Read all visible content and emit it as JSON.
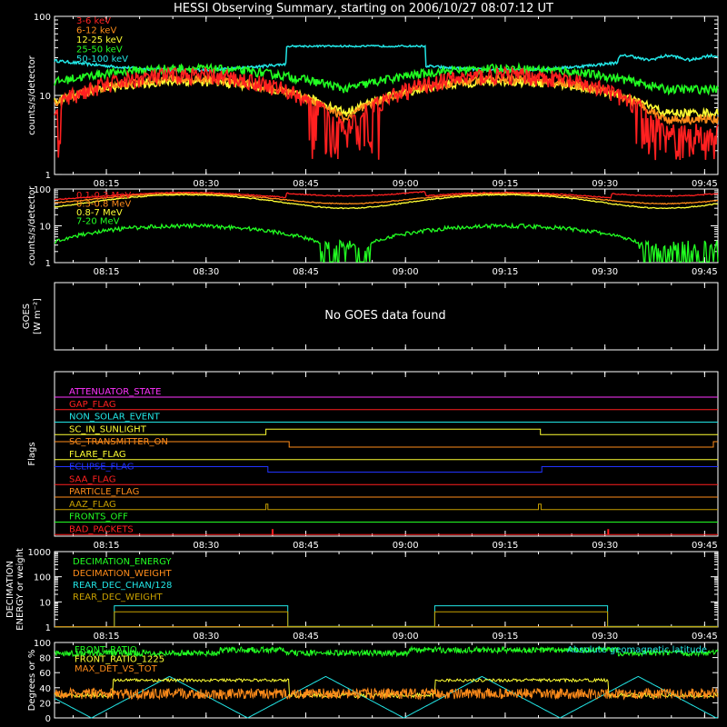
{
  "title": "HESSI Observing Summary, starting on 2006/10/27 08:07:12 UT",
  "time_ticks": [
    "08:15",
    "08:30",
    "08:45",
    "09:00",
    "09:15",
    "09:30",
    "09:45"
  ],
  "colors": {
    "red": "#ff2020",
    "orange": "#ff8c1a",
    "yellow": "#ffff33",
    "green": "#22ff22",
    "cyan": "#22e6e6",
    "magenta": "#ff33ff",
    "blue": "#2233ff",
    "olive": "#c8a000",
    "white": "#ffffff"
  },
  "chart_data": [
    {
      "type": "line",
      "id": "ql_count_rates",
      "ylabel": "counts/s/detector",
      "yscale": "log",
      "ylim": [
        1,
        100
      ],
      "ytick_labels": [
        "1",
        "10",
        "100"
      ],
      "legend_position": "top-left",
      "series": [
        {
          "name": "3-6 keV",
          "color": "red",
          "base": 3.5,
          "peak": 18,
          "shape": "orbit"
        },
        {
          "name": "6-12 keV",
          "color": "orange",
          "base": 5,
          "peak": 16,
          "shape": "orbit"
        },
        {
          "name": "12-25 keV",
          "color": "yellow",
          "base": 6,
          "peak": 15,
          "shape": "orbit"
        },
        {
          "name": "25-50 keV",
          "color": "green",
          "base": 12,
          "peak": 22,
          "shape": "orbit"
        },
        {
          "name": "50-100 keV",
          "color": "cyan",
          "base": 30,
          "peak": 42,
          "shape": "step"
        }
      ]
    },
    {
      "type": "line",
      "id": "gbr_count_rates",
      "ylabel": "counts/s/detector",
      "yscale": "log",
      "ylim": [
        1,
        100
      ],
      "ytick_labels": [
        "1",
        "10",
        "100"
      ],
      "legend_position": "top-left",
      "series": [
        {
          "name": "0.1-0.3 MeV",
          "color": "red",
          "base": 50,
          "peak": 80
        },
        {
          "name": "0.3-0.8 MeV",
          "color": "orange",
          "base": 40,
          "peak": 75
        },
        {
          "name": "0.8-7 MeV",
          "color": "yellow",
          "base": 30,
          "peak": 70
        },
        {
          "name": "7-20 MeV",
          "color": "green",
          "base": 1.3,
          "peak": 10
        }
      ]
    },
    {
      "type": "line",
      "id": "goes",
      "ylabel": "GOES",
      "yunit": "[W m⁻²]",
      "message": "No GOES data found",
      "series": []
    },
    {
      "type": "line",
      "id": "flags",
      "ylabel": "Flags",
      "series": [
        {
          "name": "ATTENUATOR_STATE",
          "color": "magenta"
        },
        {
          "name": "GAP_FLAG",
          "color": "red"
        },
        {
          "name": "NON_SOLAR_EVENT",
          "color": "cyan"
        },
        {
          "name": "SC_IN_SUNLIGHT",
          "color": "yellow"
        },
        {
          "name": "SC_TRANSMITTER_ON",
          "color": "orange"
        },
        {
          "name": "FLARE_FLAG",
          "color": "yellow"
        },
        {
          "name": "ECLIPSE_FLAG",
          "color": "blue"
        },
        {
          "name": "SAA_FLAG",
          "color": "red"
        },
        {
          "name": "PARTICLE_FLAG",
          "color": "orange"
        },
        {
          "name": "AAZ_FLAG",
          "color": "olive"
        },
        {
          "name": "FRONTS_OFF",
          "color": "green"
        },
        {
          "name": "BAD_PACKETS",
          "color": "red"
        }
      ]
    },
    {
      "type": "line",
      "id": "decimation",
      "ylabel": "DECIMATION ENERGY or weight",
      "yscale": "log",
      "ylim": [
        1,
        1000
      ],
      "ytick_labels": [
        "1",
        "10",
        "100",
        "1000"
      ],
      "series": [
        {
          "name": "DECIMATION_ENERGY",
          "color": "green"
        },
        {
          "name": "DECIMATION_WEIGHT",
          "color": "orange"
        },
        {
          "name": "REAR_DEC_CHAN/128",
          "color": "cyan",
          "value_on": 7,
          "value_off": 1
        },
        {
          "name": "REAR_DEC_WEIGHT",
          "color": "olive",
          "value_on": 4,
          "value_off": 1
        }
      ]
    },
    {
      "type": "line",
      "id": "geometry",
      "ylabel": "Degrees or %",
      "ylim": [
        0,
        100
      ],
      "ytick_labels": [
        "0",
        "20",
        "40",
        "60",
        "80",
        "100"
      ],
      "series": [
        {
          "name": "FRONT_RATIO",
          "color": "green",
          "base": 88
        },
        {
          "name": "FRONT_RATIO_1225",
          "color": "yellow",
          "base": 50
        },
        {
          "name": "MAX_DET_VS_TOT",
          "color": "orange",
          "base": 32
        },
        {
          "name": "Absolute geomagnetic latitude",
          "color": "cyan",
          "peak": 55
        }
      ]
    }
  ]
}
